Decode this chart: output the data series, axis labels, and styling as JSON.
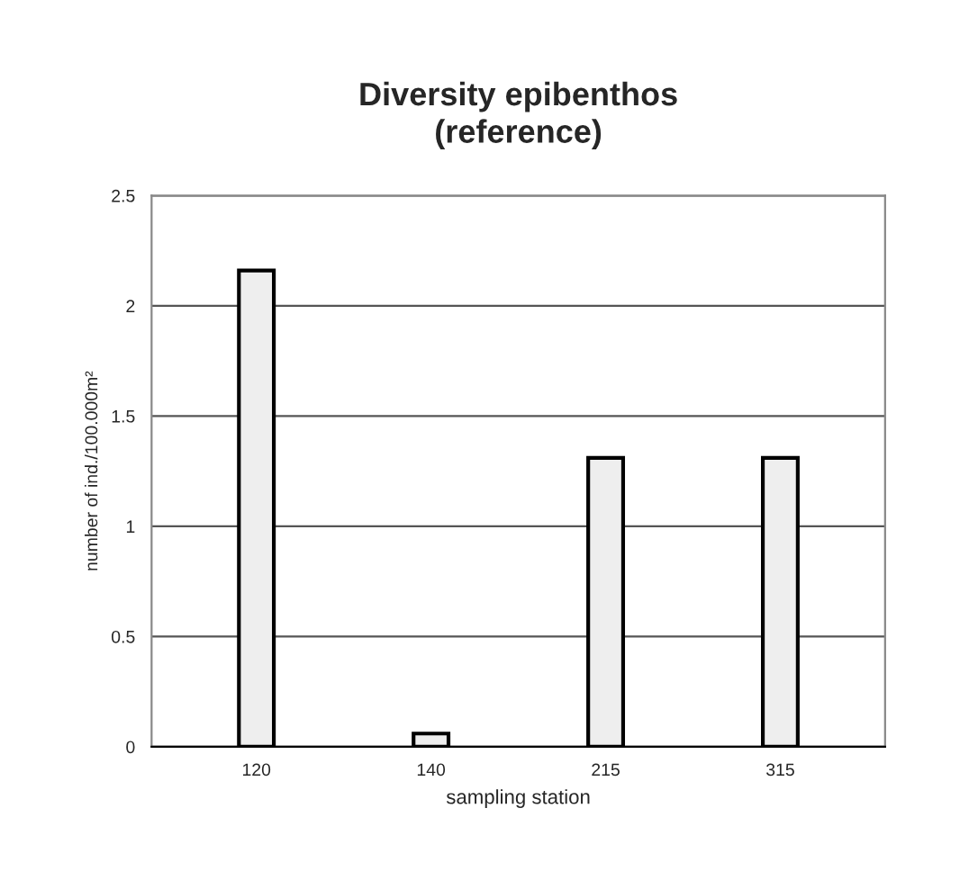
{
  "chart_data": {
    "type": "bar",
    "title": "Diversity epibenthos\n(reference)",
    "xlabel": "sampling station",
    "ylabel": "number of ind./100.000m²",
    "categories": [
      "120",
      "140",
      "215",
      "315"
    ],
    "values": [
      2.16,
      0.06,
      1.31,
      1.31
    ],
    "color": "#eeeeee",
    "ylim": [
      0,
      2.5
    ],
    "yticks": [
      0,
      0.5,
      1,
      1.5,
      2,
      2.5
    ],
    "grid": "y"
  }
}
